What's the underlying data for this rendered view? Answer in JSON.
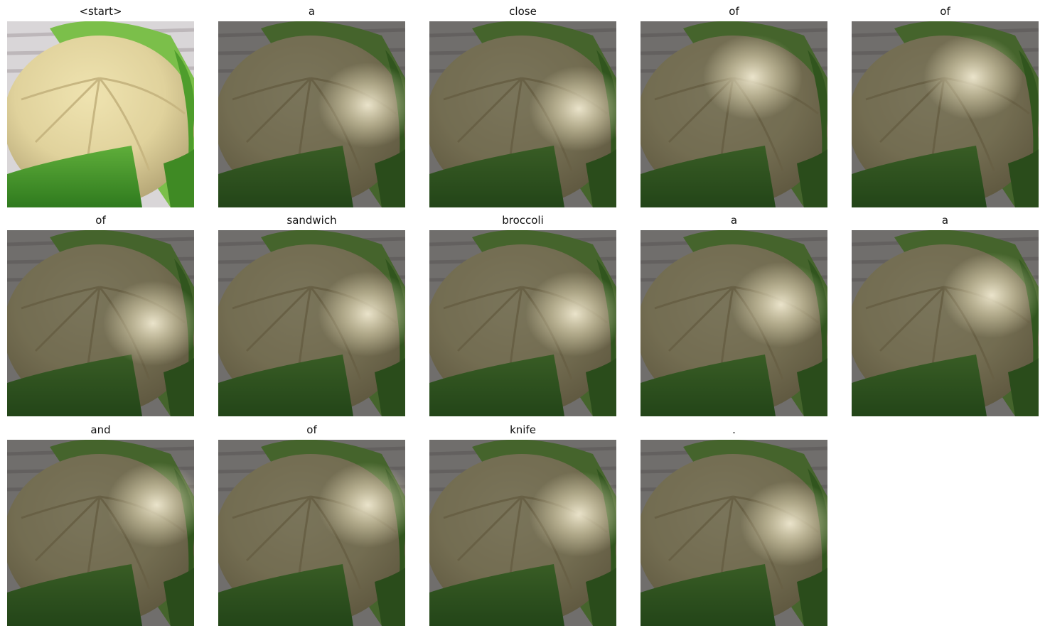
{
  "panels": [
    {
      "title": "<start>"
    },
    {
      "title": "a"
    },
    {
      "title": "close"
    },
    {
      "title": "of"
    },
    {
      "title": "of"
    },
    {
      "title": "of"
    },
    {
      "title": "sandwich"
    },
    {
      "title": "broccoli"
    },
    {
      "title": "a"
    },
    {
      "title": "a"
    },
    {
      "title": "and"
    },
    {
      "title": "of"
    },
    {
      "title": "knife"
    },
    {
      "title": "."
    }
  ]
}
